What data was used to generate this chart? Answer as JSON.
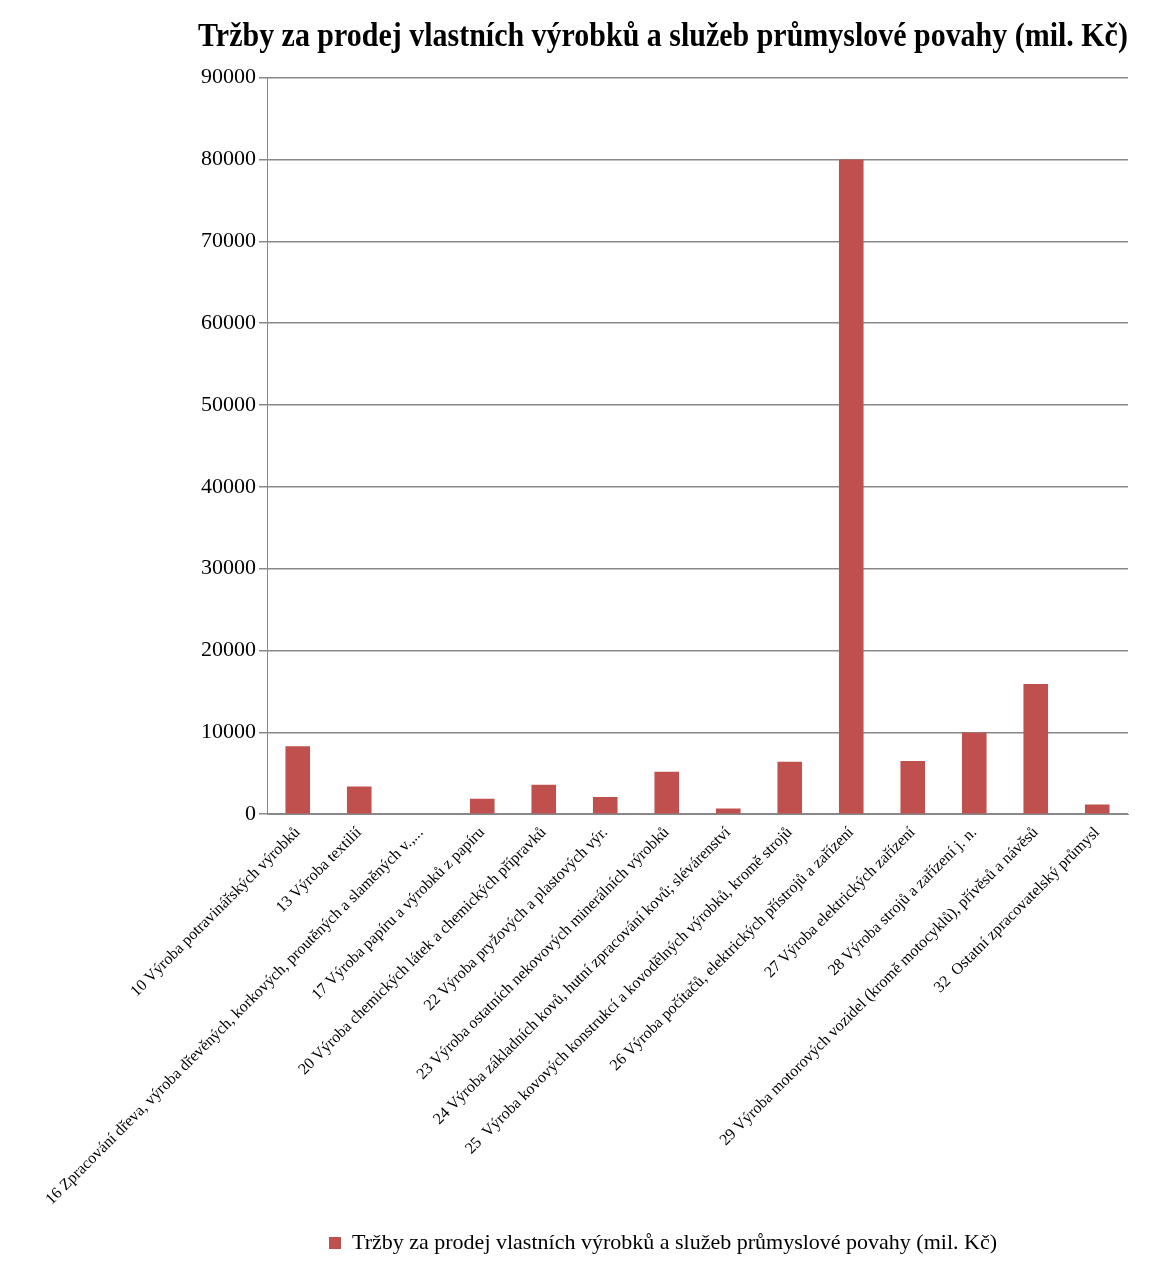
{
  "chart_data": {
    "type": "bar",
    "title": "Tržby za prodej vlastních výrobků a služeb průmyslové povahy (mil. Kč)",
    "categories": [
      "10 Výroba potravinářských výrobků",
      "13 Výroba textilií",
      "16 Zpracování dřeva, výroba dřevěných, korkových, proutěných a slaměných v.,...",
      "17 Výroba papíru a výrobků z papíru",
      "20 Výroba chemických látek a chemických přípravků",
      "22 Výroba pryžových a plastových výr.",
      "23 Výroba ostatních nekovových minerálních výrobků",
      "24 Výroba základních kovů, hutní zpracování kovů; slévárenství",
      "25  Výroba kovových konstrukcí a kovodělných výrobků, kromě strojů",
      "26 Výroba počítačů, elektrických přístrojů a zařízení",
      "27 Výroba elektrických zařízení",
      "28 Výroba strojů a zařízení j. n.",
      "29 Výroba motorových vozidel (kromě motocyklů), přívěsů a návěsů",
      "32  Ostatní zpracovatelský průmysl"
    ],
    "series": [
      {
        "name": "Tržby za prodej vlastních výrobků a služeb průmyslové povahy (mil. Kč)",
        "color": "#c0504d",
        "values": [
          8300,
          3400,
          100,
          1900,
          3600,
          2100,
          5200,
          700,
          6400,
          80000,
          6500,
          10000,
          15900,
          1200
        ]
      }
    ],
    "ylim": [
      0,
      90000
    ],
    "yticks": [
      0,
      10000,
      20000,
      30000,
      40000,
      50000,
      60000,
      70000,
      80000,
      90000
    ],
    "grid": "y",
    "legend": "bottom"
  }
}
